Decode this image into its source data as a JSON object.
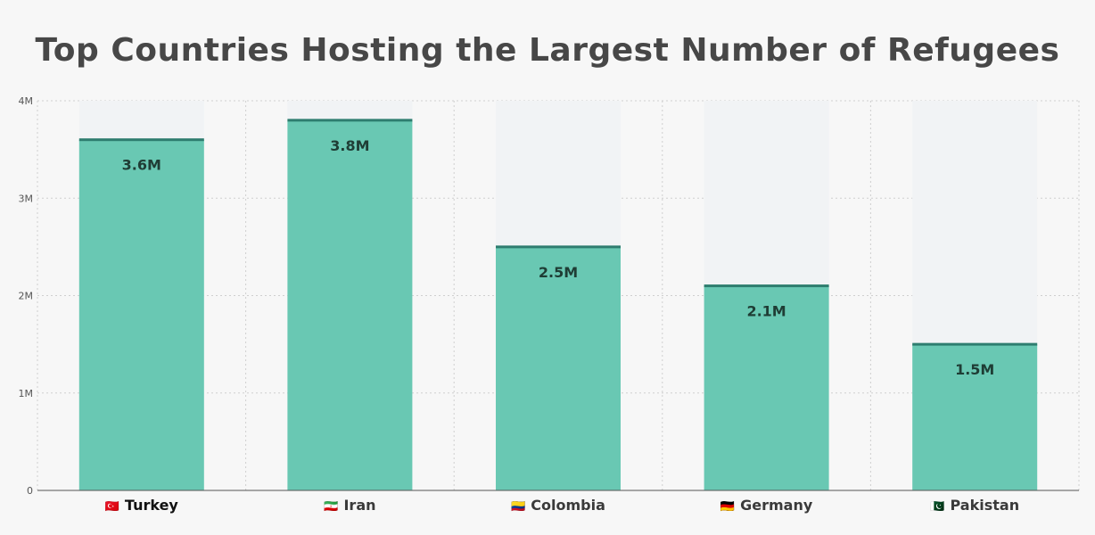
{
  "chart_data": {
    "type": "bar",
    "title": "Top Countries Hosting the Largest Number of Refugees",
    "xlabel": "",
    "ylabel": "",
    "categories": [
      "Turkey",
      "Iran",
      "Colombia",
      "Germany",
      "Pakistan"
    ],
    "flags": [
      "🇹🇷",
      "🇮🇷",
      "🇨🇴",
      "🇩🇪",
      "🇵🇰"
    ],
    "values": [
      3.6,
      3.8,
      2.5,
      2.1,
      1.5
    ],
    "value_labels": [
      "3.6M",
      "3.8M",
      "2.5M",
      "2.1M",
      "1.5M"
    ],
    "y_ticks": [
      {
        "value": 0,
        "label": "0"
      },
      {
        "value": 1,
        "label": "1M"
      },
      {
        "value": 2,
        "label": "2M"
      },
      {
        "value": 3,
        "label": "3M"
      },
      {
        "value": 4,
        "label": "4M"
      }
    ],
    "ylim": [
      0,
      4
    ],
    "grid": true,
    "colors": {
      "bar": "#69c8b3",
      "bar_cap": "#2e7d6f",
      "bar_background": "#f1f3f5",
      "grid": "#cfcfcf",
      "axis": "#555555"
    }
  }
}
